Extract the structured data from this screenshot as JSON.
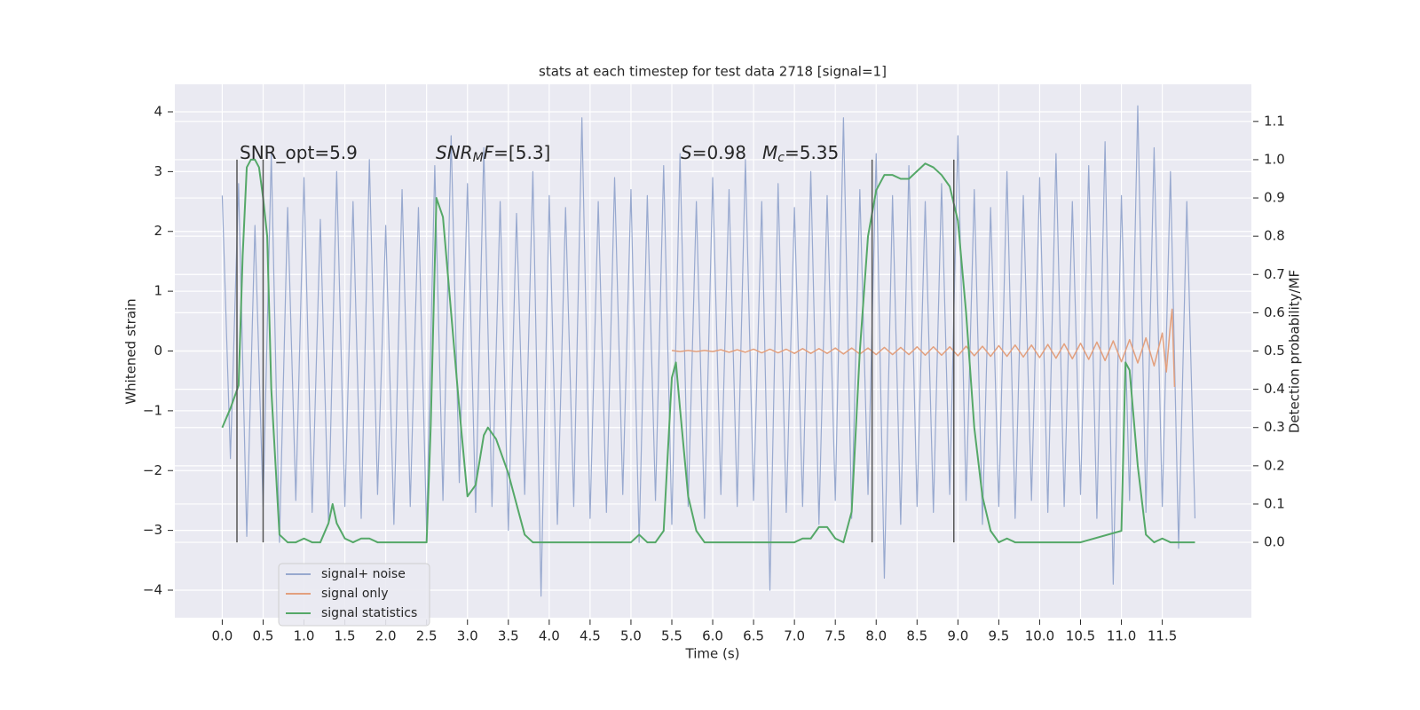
{
  "chart_data": {
    "type": "line",
    "title": "stats at each timestep for test data 2718 [signal=1]",
    "xlabel": "Time (s)",
    "ylabel": "Whitened strain",
    "y2label": "Detection probability/MF",
    "xlim": [
      -0.58,
      12.59
    ],
    "ylim": [
      -4.46,
      4.46
    ],
    "y2lim": [
      -0.197,
      1.197
    ],
    "grid": true,
    "legend": "lower left",
    "xticks": [
      {
        "value": 0,
        "label": "0.0"
      },
      0.5,
      {
        "value": 1,
        "label": "1.0"
      },
      1.5,
      {
        "value": 2,
        "label": "2.0"
      },
      2.5,
      {
        "value": 3,
        "label": "3.0"
      },
      3.5,
      {
        "value": 4,
        "label": "4.0"
      },
      4.5,
      {
        "value": 5,
        "label": "5.0"
      },
      5.5,
      {
        "value": 6,
        "label": "6.0"
      },
      6.5,
      {
        "value": 7,
        "label": "7.0"
      },
      7.5,
      {
        "value": 8,
        "label": "8.0"
      },
      8.5,
      {
        "value": 9,
        "label": "9.0"
      },
      9.5,
      {
        "value": 10,
        "label": "10.0"
      },
      10.5,
      {
        "value": 11,
        "label": "11.0"
      },
      11.5
    ],
    "yticks": [
      {
        "value": -4,
        "label": "−4"
      },
      {
        "value": -3,
        "label": "−3"
      },
      {
        "value": -2,
        "label": "−2"
      },
      {
        "value": -1,
        "label": "−1"
      },
      0,
      1,
      2,
      3,
      4
    ],
    "y2ticks": [
      {
        "value": 0,
        "label": "0.0"
      },
      0.1,
      0.2,
      0.3,
      0.4,
      0.5,
      0.6,
      0.7,
      0.8,
      0.9,
      {
        "value": 1,
        "label": "1.0"
      },
      1.1
    ],
    "series": [
      {
        "name": "signal+ noise",
        "color": "#98a9cf",
        "width": 1.2,
        "x": [
          0.0,
          0.1,
          0.2,
          0.3,
          0.4,
          0.5,
          0.6,
          0.7,
          0.8,
          0.9,
          1.0,
          1.1,
          1.2,
          1.3,
          1.4,
          1.5,
          1.6,
          1.7,
          1.8,
          1.9,
          2.0,
          2.1,
          2.2,
          2.3,
          2.4,
          2.5,
          2.6,
          2.7,
          2.8,
          2.9,
          3.0,
          3.1,
          3.2,
          3.3,
          3.4,
          3.5,
          3.6,
          3.7,
          3.8,
          3.9,
          4.0,
          4.1,
          4.2,
          4.3,
          4.4,
          4.5,
          4.6,
          4.7,
          4.8,
          4.9,
          5.0,
          5.1,
          5.2,
          5.3,
          5.4,
          5.5,
          5.6,
          5.7,
          5.8,
          5.9,
          6.0,
          6.1,
          6.2,
          6.3,
          6.4,
          6.5,
          6.6,
          6.7,
          6.8,
          6.9,
          7.0,
          7.1,
          7.2,
          7.3,
          7.4,
          7.5,
          7.6,
          7.7,
          7.8,
          7.9,
          8.0,
          8.1,
          8.2,
          8.3,
          8.4,
          8.5,
          8.6,
          8.7,
          8.8,
          8.9,
          9.0,
          9.1,
          9.2,
          9.3,
          9.4,
          9.5,
          9.6,
          9.7,
          9.8,
          9.9,
          10.0,
          10.1,
          10.2,
          10.3,
          10.4,
          10.5,
          10.6,
          10.7,
          10.8,
          10.9,
          11.0,
          11.1,
          11.2,
          11.3,
          11.4,
          11.5,
          11.6,
          11.7,
          11.8,
          11.9
        ],
        "values": [
          2.6,
          -1.8,
          2.8,
          -3.1,
          2.1,
          -2.6,
          3.3,
          -3.2,
          2.4,
          -2.5,
          2.9,
          -2.7,
          2.2,
          -2.9,
          3.0,
          -2.6,
          2.5,
          -2.8,
          3.2,
          -2.4,
          2.1,
          -2.9,
          2.7,
          -2.6,
          2.4,
          -3.0,
          3.1,
          -2.5,
          3.6,
          -2.2,
          2.8,
          -2.7,
          3.4,
          -2.6,
          2.5,
          -3.0,
          2.3,
          -2.4,
          3.0,
          -4.1,
          2.6,
          -2.9,
          2.4,
          -2.6,
          3.9,
          -2.8,
          2.5,
          -2.7,
          2.9,
          -2.4,
          2.7,
          -3.2,
          2.6,
          -2.5,
          3.1,
          -2.9,
          3.3,
          -2.6,
          2.5,
          -2.8,
          2.9,
          -2.4,
          2.7,
          -2.6,
          3.2,
          -2.5,
          2.5,
          -4.0,
          2.8,
          -2.7,
          2.4,
          -2.6,
          3.0,
          -2.9,
          2.6,
          -2.5,
          3.9,
          -2.8,
          2.7,
          -2.4,
          3.3,
          -3.8,
          2.6,
          -2.9,
          3.1,
          -2.6,
          2.5,
          -2.7,
          2.8,
          -2.4,
          3.6,
          -2.5,
          2.7,
          -2.9,
          2.4,
          -2.6,
          3.0,
          -2.8,
          2.6,
          -2.5,
          2.9,
          -2.7,
          3.3,
          -2.6,
          2.5,
          -2.4,
          3.1,
          -2.8,
          3.5,
          -3.9,
          2.6,
          -2.5,
          4.1,
          -2.7,
          3.4,
          -2.6,
          3.0,
          -3.3,
          2.5,
          -2.8
        ]
      },
      {
        "name": "signal only",
        "color": "#e3a07e",
        "width": 1.5,
        "x": [
          5.5,
          5.6,
          5.7,
          5.8,
          5.9,
          6.0,
          6.1,
          6.2,
          6.3,
          6.4,
          6.5,
          6.6,
          6.7,
          6.8,
          6.9,
          7.0,
          7.1,
          7.2,
          7.3,
          7.4,
          7.5,
          7.6,
          7.7,
          7.8,
          7.9,
          8.0,
          8.1,
          8.2,
          8.3,
          8.4,
          8.5,
          8.6,
          8.7,
          8.8,
          8.9,
          9.0,
          9.1,
          9.2,
          9.3,
          9.4,
          9.5,
          9.6,
          9.7,
          9.8,
          9.9,
          10.0,
          10.1,
          10.2,
          10.3,
          10.4,
          10.5,
          10.6,
          10.7,
          10.8,
          10.9,
          11.0,
          11.1,
          11.2,
          11.3,
          11.4,
          11.5,
          11.55,
          11.6,
          11.62,
          11.65
        ],
        "values": [
          0.01,
          -0.01,
          0.01,
          -0.01,
          0.01,
          -0.01,
          0.02,
          -0.02,
          0.02,
          -0.02,
          0.03,
          -0.03,
          0.03,
          -0.03,
          0.03,
          -0.04,
          0.04,
          -0.04,
          0.04,
          -0.04,
          0.05,
          -0.05,
          0.05,
          -0.05,
          0.05,
          -0.06,
          0.06,
          -0.06,
          0.06,
          -0.06,
          0.07,
          -0.07,
          0.07,
          -0.07,
          0.07,
          -0.08,
          0.08,
          -0.08,
          0.08,
          -0.09,
          0.09,
          -0.09,
          0.1,
          -0.1,
          0.1,
          -0.11,
          0.11,
          -0.12,
          0.12,
          -0.13,
          0.13,
          -0.14,
          0.15,
          -0.16,
          0.17,
          -0.18,
          0.19,
          -0.2,
          0.22,
          -0.25,
          0.3,
          -0.35,
          0.45,
          0.7,
          -0.6
        ]
      },
      {
        "name": "signal statistics",
        "color": "#55a868",
        "width": 2,
        "axis": "y2",
        "x": [
          0,
          0.1,
          0.2,
          0.25,
          0.3,
          0.35,
          0.4,
          0.45,
          0.5,
          0.55,
          0.6,
          0.7,
          0.8,
          0.9,
          1.0,
          1.1,
          1.2,
          1.3,
          1.35,
          1.4,
          1.5,
          1.6,
          1.7,
          1.8,
          1.9,
          2.0,
          2.1,
          2.2,
          2.3,
          2.4,
          2.5,
          2.55,
          2.62,
          2.7,
          2.8,
          2.9,
          3.0,
          3.1,
          3.2,
          3.25,
          3.35,
          3.5,
          3.6,
          3.7,
          3.8,
          4.0,
          4.5,
          5.0,
          5.1,
          5.2,
          5.3,
          5.4,
          5.5,
          5.55,
          5.6,
          5.7,
          5.8,
          5.9,
          6.0,
          6.5,
          7.0,
          7.1,
          7.2,
          7.3,
          7.4,
          7.5,
          7.6,
          7.7,
          7.8,
          7.9,
          8.0,
          8.1,
          8.2,
          8.3,
          8.4,
          8.5,
          8.6,
          8.7,
          8.8,
          8.9,
          9.0,
          9.1,
          9.2,
          9.3,
          9.4,
          9.5,
          9.6,
          9.7,
          10.0,
          10.5,
          11.0,
          11.05,
          11.1,
          11.2,
          11.3,
          11.4,
          11.5,
          11.6,
          11.9
        ],
        "values": [
          0.3,
          0.35,
          0.41,
          0.75,
          0.98,
          1.0,
          1.0,
          0.98,
          0.9,
          0.8,
          0.4,
          0.02,
          0.0,
          0.0,
          0.01,
          0.0,
          0.0,
          0.05,
          0.1,
          0.05,
          0.01,
          0.0,
          0.01,
          0.01,
          0.0,
          0.0,
          0.0,
          0.0,
          0.0,
          0.0,
          0.0,
          0.3,
          0.9,
          0.85,
          0.6,
          0.35,
          0.12,
          0.15,
          0.28,
          0.3,
          0.27,
          0.18,
          0.1,
          0.02,
          0.0,
          0.0,
          0.0,
          0.0,
          0.02,
          0.0,
          0.0,
          0.03,
          0.43,
          0.47,
          0.35,
          0.12,
          0.03,
          0.0,
          0.0,
          0.0,
          0.0,
          0.01,
          0.01,
          0.04,
          0.04,
          0.01,
          0.0,
          0.08,
          0.5,
          0.8,
          0.92,
          0.96,
          0.96,
          0.95,
          0.95,
          0.97,
          0.99,
          0.98,
          0.96,
          0.93,
          0.84,
          0.6,
          0.3,
          0.12,
          0.03,
          0.0,
          0.01,
          0.0,
          0.0,
          0.0,
          0.03,
          0.47,
          0.45,
          0.2,
          0.02,
          0.0,
          0.01,
          0.0,
          0.0
        ]
      }
    ],
    "vlines": {
      "x": [
        0.18,
        0.5,
        7.95,
        8.95
      ],
      "ymin": 0,
      "ymax": 1,
      "color": "#555555",
      "axis": "y2"
    },
    "annotations": [
      [
        {
          "text": "SNR_opt=5.9"
        }
      ],
      [
        {
          "text": "SNR",
          "style": "italic"
        },
        {
          "text": "M",
          "style": "sub"
        },
        {
          "text": "F",
          "style": "italic"
        },
        {
          "text": "=[5.3]"
        }
      ],
      [
        {
          "text": "S",
          "style": "italic"
        },
        {
          "text": "=0.98"
        }
      ],
      [
        {
          "text": "M",
          "style": "italic"
        },
        {
          "text": "c",
          "style": "sub"
        },
        {
          "text": "=5.35"
        }
      ]
    ]
  }
}
